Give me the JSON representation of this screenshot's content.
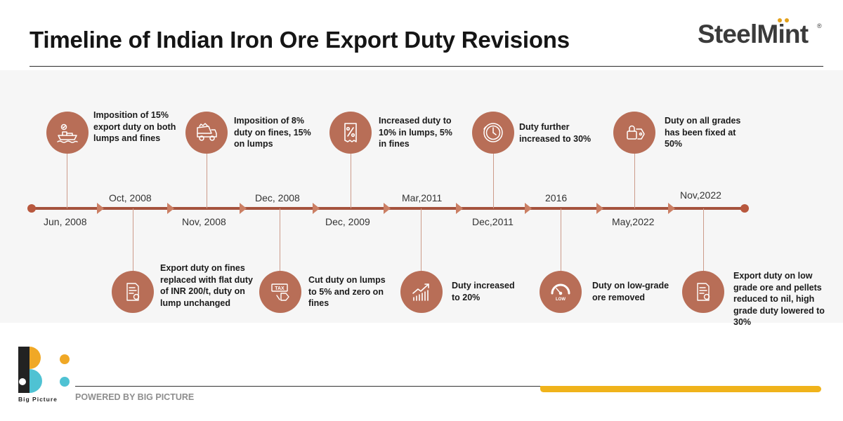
{
  "title": "Timeline of Indian Iron Ore Export Duty Revisions",
  "brand_logo": {
    "text": "SteelMint",
    "reg_mark": "®"
  },
  "colors": {
    "accent": "#b86e57",
    "axis": "#a5533d",
    "axis_dot": "#b8583e",
    "stem": "#cc9b8a",
    "footer_bar": "#f0b31b",
    "bp_orange": "#f0a826",
    "bp_teal": "#4fc2d3"
  },
  "events": [
    {
      "date": "Jun, 2008",
      "text": "Imposition of 15% export duty on both lumps and fines",
      "icon": "ship-icon",
      "position": "above"
    },
    {
      "date": "Oct, 2008",
      "text": "Export duty on fines replaced with flat duty of INR 200/t, duty on lump unchanged",
      "icon": "document-icon",
      "position": "below"
    },
    {
      "date": "Nov, 2008",
      "text": "Imposition of 8% duty on fines, 15% on lumps",
      "icon": "dump-truck-icon",
      "position": "above"
    },
    {
      "date": "Dec, 2008",
      "text": "Cut duty on lumps to 5% and zero on fines",
      "icon": "tax-tag-icon",
      "position": "below"
    },
    {
      "date": "Dec, 2009",
      "text": "Increased duty to 10% in lumps, 5% in fines",
      "icon": "percent-receipt-icon",
      "position": "above"
    },
    {
      "date": "Mar,2011",
      "text": "Duty increased to 20%",
      "icon": "growth-chart-icon",
      "position": "below"
    },
    {
      "date": "Dec,2011",
      "text": "Duty further increased to 30%",
      "icon": "clock-icon",
      "position": "above"
    },
    {
      "date": "2016",
      "text": "Duty on low-grade ore removed",
      "icon": "low-gauge-icon",
      "position": "below"
    },
    {
      "date": "May,2022",
      "text": "Duty on all grades has been fixed at 50%",
      "icon": "lock-tag-icon",
      "position": "above"
    },
    {
      "date": "Nov,2022",
      "text": "Export duty on low grade ore and pellets reduced to nil, high grade duty lowered to 30%",
      "icon": "document-icon",
      "position": "below"
    }
  ],
  "icons_text": {
    "tax": "TAX",
    "low": "LOW"
  },
  "footer": {
    "logo_label": "Big Picture",
    "powered_by": "POWERED BY BIG PICTURE"
  }
}
